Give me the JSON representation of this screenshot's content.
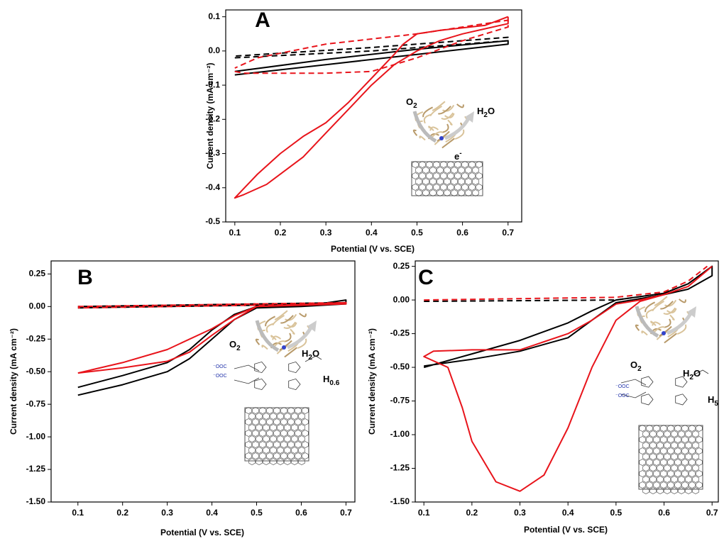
{
  "chart_data": [
    {
      "type": "line",
      "panel_label": "A",
      "xlabel": "Potential (V vs. SCE)",
      "ylabel": "Current density (mA cm⁻²)",
      "xlim": [
        0.08,
        0.73
      ],
      "ylim": [
        -0.5,
        0.12
      ],
      "xticks": [
        0.1,
        0.2,
        0.3,
        0.4,
        0.5,
        0.6,
        0.7
      ],
      "yticks": [
        0.1,
        {
          "value": 0,
          "label": "0.0"
        },
        -0.1,
        -0.2,
        -0.3,
        -0.4,
        -0.5
      ],
      "annotations": [
        {
          "text": "O",
          "sub": "2"
        },
        {
          "text": "H",
          "sub": "2",
          "tail": "O"
        },
        {
          "text": "e",
          "sup": "-"
        }
      ],
      "series": [
        {
          "color": "#000000",
          "dashed": false,
          "x": [
            0.1,
            0.3,
            0.5,
            0.7,
            0.7,
            0.5,
            0.3,
            0.1
          ],
          "values": [
            -0.07,
            -0.04,
            -0.01,
            0.02,
            0.03,
            0.005,
            -0.025,
            -0.06
          ]
        },
        {
          "color": "#000000",
          "dashed": true,
          "x": [
            0.1,
            0.4,
            0.7,
            0.7,
            0.4,
            0.1
          ],
          "values": [
            -0.02,
            0.0,
            0.03,
            0.04,
            0.01,
            -0.015
          ]
        },
        {
          "color": "#e8141b",
          "dashed": true,
          "x": [
            0.1,
            0.12,
            0.3,
            0.4,
            0.5,
            0.6,
            0.7,
            0.7,
            0.6,
            0.5,
            0.3,
            0.15,
            0.1
          ],
          "values": [
            -0.06,
            -0.065,
            -0.065,
            -0.06,
            -0.02,
            0.03,
            0.07,
            0.09,
            0.07,
            0.05,
            0.02,
            -0.02,
            -0.05
          ]
        },
        {
          "color": "#e8141b",
          "dashed": false,
          "x": [
            0.7,
            0.65,
            0.55,
            0.5,
            0.47,
            0.45,
            0.4,
            0.35,
            0.3,
            0.25,
            0.2,
            0.15,
            0.1,
            0.12,
            0.17,
            0.25,
            0.3,
            0.35,
            0.4,
            0.45,
            0.5,
            0.55,
            0.6,
            0.65,
            0.7,
            0.7
          ],
          "values": [
            0.1,
            0.075,
            0.06,
            0.05,
            0.02,
            -0.01,
            -0.08,
            -0.15,
            -0.21,
            -0.25,
            -0.3,
            -0.36,
            -0.43,
            -0.42,
            -0.39,
            -0.31,
            -0.24,
            -0.17,
            -0.1,
            -0.04,
            0.0,
            0.03,
            0.05,
            0.065,
            0.08,
            0.1
          ]
        }
      ]
    },
    {
      "type": "line",
      "panel_label": "B",
      "xlabel": "Potential (V vs. SCE)",
      "ylabel": "Current density (mA cm⁻²)",
      "xlim": [
        0.04,
        0.72
      ],
      "ylim": [
        -1.5,
        0.35
      ],
      "xticks": [
        0.1,
        0.2,
        0.3,
        0.4,
        0.5,
        0.6,
        0.7
      ],
      "yticks": [
        0.25,
        {
          "value": 0,
          "label": "0.00"
        },
        -0.25,
        {
          "value": -0.5,
          "label": "-0.50"
        },
        -0.75,
        {
          "value": -1,
          "label": "-1.00"
        },
        -1.25,
        {
          "value": -1.5,
          "label": "-1.50"
        }
      ],
      "annotations": [
        {
          "text": "O",
          "sub": "2"
        },
        {
          "text": "H",
          "sub": "2",
          "tail": "O"
        },
        {
          "text": "⁻OOC"
        },
        {
          "text": "⁻OOC"
        },
        {
          "text": "H",
          "sub": "0.6"
        }
      ],
      "series": [
        {
          "color": "#000000",
          "dashed": false,
          "x": [
            0.1,
            0.2,
            0.3,
            0.35,
            0.4,
            0.45,
            0.5,
            0.6,
            0.7,
            0.7,
            0.6,
            0.5,
            0.45,
            0.4,
            0.35,
            0.3,
            0.2,
            0.1
          ],
          "values": [
            -0.68,
            -0.6,
            -0.5,
            -0.4,
            -0.25,
            -0.1,
            -0.01,
            0.0,
            0.02,
            0.05,
            0.0,
            0.0,
            -0.06,
            -0.18,
            -0.33,
            -0.43,
            -0.53,
            -0.62
          ]
        },
        {
          "color": "#000000",
          "dashed": true,
          "x": [
            0.1,
            0.7,
            0.7,
            0.1
          ],
          "values": [
            -0.01,
            0.02,
            0.03,
            0.0
          ]
        },
        {
          "color": "#e8141b",
          "dashed": true,
          "x": [
            0.1,
            0.7,
            0.7,
            0.1
          ],
          "values": [
            0.0,
            0.03,
            0.02,
            -0.01
          ]
        },
        {
          "color": "#e8141b",
          "dashed": false,
          "x": [
            0.1,
            0.2,
            0.3,
            0.4,
            0.45,
            0.5,
            0.7,
            0.7,
            0.5,
            0.45,
            0.4,
            0.35,
            0.3,
            0.2,
            0.1
          ],
          "values": [
            -0.51,
            -0.43,
            -0.33,
            -0.17,
            -0.07,
            0.0,
            0.02,
            0.03,
            0.0,
            -0.1,
            -0.22,
            -0.35,
            -0.42,
            -0.47,
            -0.51
          ]
        }
      ]
    },
    {
      "type": "line",
      "panel_label": "C",
      "xlabel": "Potential (V vs. SCE)",
      "ylabel": "Current density (mA cm⁻²)",
      "xlim": [
        0.082,
        0.713
      ],
      "ylim": [
        -1.5,
        0.29
      ],
      "xticks": [
        0.1,
        0.2,
        0.3,
        0.4,
        0.5,
        0.6,
        0.7
      ],
      "yticks": [
        0.25,
        {
          "value": 0,
          "label": "0.00"
        },
        -0.25,
        {
          "value": -0.5,
          "label": "-0.50"
        },
        -0.75,
        {
          "value": -1,
          "label": "-1.00"
        },
        -1.25,
        {
          "value": -1.5,
          "label": "-1.50"
        }
      ],
      "annotations": [
        {
          "text": "O",
          "sub": "2"
        },
        {
          "text": "H",
          "sub": "2",
          "tail": "O"
        },
        {
          "text": "⁻OOC"
        },
        {
          "text": "⁻OOC"
        },
        {
          "text": "H",
          "sub": "5"
        }
      ],
      "series": [
        {
          "color": "#000000",
          "dashed": false,
          "x": [
            0.1,
            0.2,
            0.3,
            0.4,
            0.45,
            0.5,
            0.6,
            0.65,
            0.7,
            0.7,
            0.65,
            0.6,
            0.5,
            0.45,
            0.4,
            0.3,
            0.2,
            0.1
          ],
          "values": [
            -0.5,
            -0.4,
            -0.3,
            -0.17,
            -0.08,
            0.0,
            0.05,
            0.12,
            0.25,
            0.18,
            0.08,
            0.04,
            -0.02,
            -0.15,
            -0.28,
            -0.38,
            -0.44,
            -0.49
          ]
        },
        {
          "color": "#000000",
          "dashed": true,
          "x": [
            0.1,
            0.5,
            0.6,
            0.65,
            0.7
          ],
          "values": [
            -0.01,
            0.0,
            0.05,
            0.12,
            0.25
          ]
        },
        {
          "color": "#e8141b",
          "dashed": true,
          "x": [
            0.1,
            0.5,
            0.6,
            0.65,
            0.69
          ],
          "values": [
            0.0,
            0.02,
            0.06,
            0.14,
            0.25
          ]
        },
        {
          "color": "#e8141b",
          "dashed": false,
          "x": [
            0.7,
            0.65,
            0.6,
            0.55,
            0.5,
            0.45,
            0.4,
            0.35,
            0.3,
            0.2,
            0.12,
            0.1,
            0.15,
            0.18,
            0.2,
            0.25,
            0.3,
            0.35,
            0.4,
            0.45,
            0.5,
            0.55,
            0.6,
            0.65,
            0.7
          ],
          "values": [
            0.25,
            0.1,
            0.04,
            0.0,
            -0.03,
            -0.15,
            -0.25,
            -0.31,
            -0.37,
            -0.37,
            -0.38,
            -0.42,
            -0.5,
            -0.8,
            -1.05,
            -1.35,
            -1.42,
            -1.3,
            -0.95,
            -0.5,
            -0.15,
            -0.01,
            0.04,
            0.1,
            0.25
          ]
        }
      ]
    }
  ]
}
